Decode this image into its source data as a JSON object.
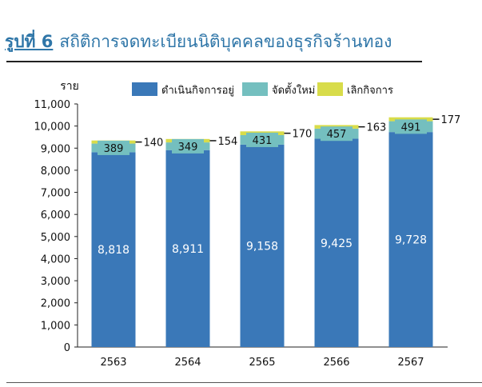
{
  "header": {
    "figure_number": "รูปที่ 6",
    "title": "สถิติการจดทะเบียนนิติบุคคลของธุรกิจร้านทอง"
  },
  "chart_data": {
    "type": "bar",
    "stacked": true,
    "ylabel": "ราย",
    "ylim": [
      0,
      11000
    ],
    "yticks": [
      0,
      1000,
      2000,
      3000,
      4000,
      5000,
      6000,
      7000,
      8000,
      9000,
      10000,
      11000
    ],
    "ytick_labels": [
      "0",
      "1,000",
      "2,000",
      "3,000",
      "4,000",
      "5,000",
      "6,000",
      "7,000",
      "8,000",
      "9,000",
      "10,000",
      "11,000"
    ],
    "categories": [
      "2563",
      "2564",
      "2565",
      "2566",
      "2567"
    ],
    "legend_position": "top",
    "grid": false,
    "series": [
      {
        "name": "ดำเนินกิจการอยู่",
        "color": "#3a78b8",
        "values": [
          8818,
          8911,
          9158,
          9425,
          9728
        ],
        "labels": [
          "8,818",
          "8,911",
          "9,158",
          "9,425",
          "9,728"
        ]
      },
      {
        "name": "จัดตั้งใหม่",
        "color": "#74bfbf",
        "values": [
          389,
          349,
          431,
          457,
          491
        ],
        "labels": [
          "389",
          "349",
          "431",
          "457",
          "491"
        ]
      },
      {
        "name": "เลิกกิจการ",
        "color": "#d8dc4a",
        "values": [
          140,
          154,
          170,
          163,
          177
        ],
        "labels": [
          "140",
          "154",
          "170",
          "163",
          "177"
        ]
      }
    ]
  }
}
